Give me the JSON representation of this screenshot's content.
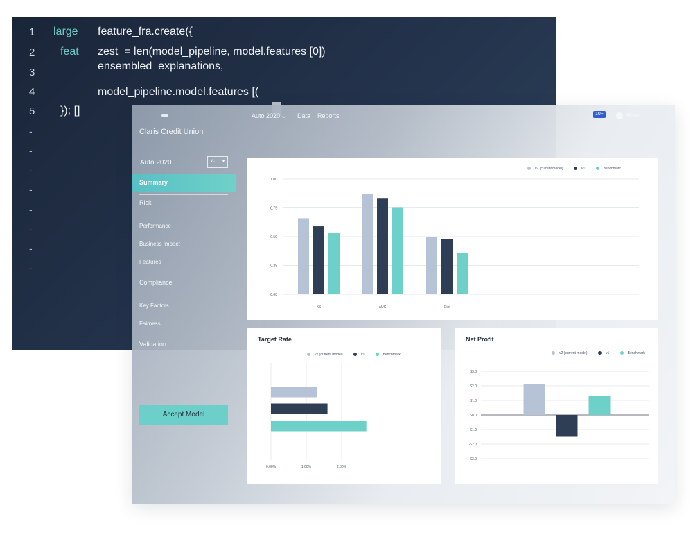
{
  "editor": {
    "line_numbers": [
      "1",
      "2",
      "3",
      "4",
      "5"
    ],
    "dash_markers": [
      "-",
      "-",
      "-",
      "-",
      "-",
      "-",
      "-",
      "-"
    ],
    "lines": [
      {
        "keyword": "large",
        "code": "feature_fra.create({"
      },
      {
        "keyword": "feat",
        "code": "zest  = len(model_pipeline, model.features [0])"
      },
      {
        "keyword": "",
        "code": "ensembled_explanations,"
      },
      {
        "keyword": "",
        "code": "model_pipeline.model.features [("
      },
      {
        "keyword": "",
        "code": "}); []"
      }
    ]
  },
  "app": {
    "nav": {
      "model_menu": "Auto 2020",
      "chevron": "⌵",
      "data": "Data",
      "reports": "Reports"
    },
    "notification_badge": "10+",
    "user_label": "Alison",
    "org_name": "Claris Credit Union",
    "sidebar": {
      "model_name": "Auto 2020",
      "version_select": "v..",
      "version_caret": "▾",
      "active_item": "Summary",
      "items": [
        "Risk",
        "Performance",
        "Business Impact",
        "Features",
        "Compliance",
        "Key Factors",
        "Fairness",
        "Validation"
      ],
      "accept_button": "Accept Model"
    },
    "legend": {
      "v2": "v2 (current model)",
      "v1": "v1",
      "benchmark": "Benchmark"
    },
    "colors": {
      "v2": "#b6c3d6",
      "v1": "#2e3f55",
      "benchmark": "#6dd0c9"
    }
  },
  "chart_data": [
    {
      "type": "bar",
      "title": "",
      "categories": [
        "KS",
        "AUC",
        "Gini"
      ],
      "series": [
        {
          "name": "v2 (current model)",
          "values": [
            0.66,
            0.87,
            0.5
          ]
        },
        {
          "name": "v1",
          "values": [
            0.59,
            0.83,
            0.48
          ]
        },
        {
          "name": "Benchmark",
          "values": [
            0.53,
            0.75,
            0.36
          ]
        }
      ],
      "ylim": [
        0,
        1
      ],
      "yticks": [
        "1.00",
        "0.75",
        "0.50",
        "0.25",
        "0.00"
      ],
      "legend_position": "top-right"
    },
    {
      "type": "bar",
      "orientation": "horizontal",
      "title": "Target Rate",
      "categories": [
        "v2 (current model)",
        "v1",
        "Benchmark"
      ],
      "values": [
        1.3,
        1.6,
        2.7
      ],
      "xlim": [
        0,
        3
      ],
      "xticks": [
        "0.00%",
        "1.00%",
        "2.00%"
      ],
      "legend_position": "top-center"
    },
    {
      "type": "bar",
      "title": "Net Profit",
      "categories": [
        "v2 (current model)",
        "v1",
        "Benchmark"
      ],
      "values": [
        2.1,
        -1.5,
        1.3
      ],
      "ylim": [
        -3,
        3
      ],
      "yticks": [
        "$3.0",
        "$2.0",
        "$1.0",
        "$0.0",
        "-$1.0",
        "-$2.0",
        "-$3.0"
      ],
      "legend_position": "top-right"
    }
  ]
}
